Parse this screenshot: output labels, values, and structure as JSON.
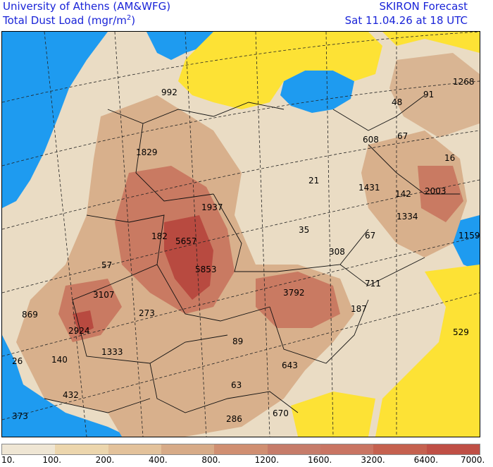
{
  "header": {
    "line1": "University of Athens (AM&WFG)",
    "line2_prefix": "Total Dust Load (mgr/m",
    "line2_sup": "2",
    "line2_suffix": ")",
    "forecast_title": "SKIRON Forecast",
    "forecast_time": "Sat 11.04.26 at 18 UTC"
  },
  "colors": {
    "sea": "#1e9bf0",
    "clear_land": "#fde235",
    "dust_low": "#efe6d4",
    "dust_mid": "#d8b08c",
    "dust_high": "#c56a52",
    "dust_peak": "#b84a40"
  },
  "legend": {
    "colors": [
      "#efe6d4",
      "#ecd6ad",
      "#e3c29b",
      "#d7ab88",
      "#d08f72",
      "#c67c6a",
      "#c97563",
      "#c5614f",
      "#bf4f45"
    ],
    "labels": [
      "10.",
      "100.",
      "200.",
      "400.",
      "800.",
      "1200.",
      "1600.",
      "3200.",
      "6400.",
      "7000."
    ]
  },
  "map_values": [
    {
      "text": "1268"
    },
    {
      "text": "91"
    },
    {
      "text": "48"
    },
    {
      "text": "992"
    },
    {
      "text": "67"
    },
    {
      "text": "608"
    },
    {
      "text": "1829"
    },
    {
      "text": "16"
    },
    {
      "text": "21"
    },
    {
      "text": "1431"
    },
    {
      "text": "142"
    },
    {
      "text": "2003"
    },
    {
      "text": "1937"
    },
    {
      "text": "1334"
    },
    {
      "text": "35"
    },
    {
      "text": "182"
    },
    {
      "text": "5657"
    },
    {
      "text": "67"
    },
    {
      "text": "1159"
    },
    {
      "text": "308"
    },
    {
      "text": "57"
    },
    {
      "text": "5853"
    },
    {
      "text": "711"
    },
    {
      "text": "3107"
    },
    {
      "text": "3792"
    },
    {
      "text": "869"
    },
    {
      "text": "273"
    },
    {
      "text": "187"
    },
    {
      "text": "2924"
    },
    {
      "text": "89"
    },
    {
      "text": "529"
    },
    {
      "text": "1333"
    },
    {
      "text": "26"
    },
    {
      "text": "140"
    },
    {
      "text": "643"
    },
    {
      "text": "63"
    },
    {
      "text": "432"
    },
    {
      "text": "373"
    },
    {
      "text": "286"
    },
    {
      "text": "670"
    }
  ]
}
